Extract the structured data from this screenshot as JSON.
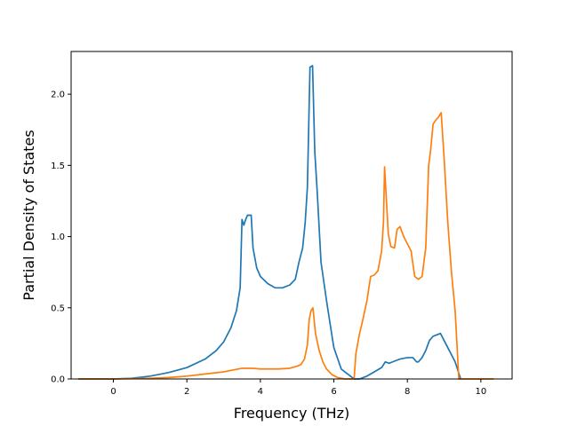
{
  "chart_data": {
    "type": "line",
    "title": "",
    "xlabel": "Frequency (THz)",
    "ylabel": "Partial Density of States",
    "xlim": [
      -1.15,
      10.85
    ],
    "ylim": [
      0.0,
      2.3
    ],
    "xticks": [
      0,
      2,
      4,
      6,
      8,
      10
    ],
    "yticks": [
      0.0,
      0.5,
      1.0,
      1.5,
      2.0
    ],
    "xtick_labels": [
      "0",
      "2",
      "4",
      "6",
      "8",
      "10"
    ],
    "ytick_labels": [
      "0.0",
      "0.5",
      "1.0",
      "1.5",
      "2.0"
    ],
    "grid": false,
    "legend": "none",
    "series": [
      {
        "color": "#1f77b4",
        "x": [
          -0.95,
          0.0,
          0.5,
          1.0,
          1.5,
          2.0,
          2.5,
          2.8,
          3.0,
          3.2,
          3.35,
          3.45,
          3.5,
          3.55,
          3.6,
          3.65,
          3.75,
          3.8,
          3.9,
          4.0,
          4.2,
          4.4,
          4.6,
          4.8,
          4.95,
          5.05,
          5.15,
          5.22,
          5.28,
          5.35,
          5.42,
          5.48,
          5.55,
          5.65,
          5.8,
          5.95,
          6.0,
          6.2,
          6.4,
          6.55,
          6.7,
          6.9,
          7.1,
          7.3,
          7.4,
          7.5,
          7.6,
          7.7,
          7.8,
          8.0,
          8.15,
          8.25,
          8.3,
          8.4,
          8.5,
          8.6,
          8.7,
          8.8,
          8.9,
          9.0,
          9.1,
          9.3,
          9.45
        ],
        "y": [
          0.0,
          0.0,
          0.005,
          0.02,
          0.045,
          0.08,
          0.14,
          0.2,
          0.26,
          0.36,
          0.48,
          0.64,
          1.12,
          1.08,
          1.12,
          1.15,
          1.15,
          0.92,
          0.78,
          0.72,
          0.67,
          0.64,
          0.64,
          0.66,
          0.7,
          0.82,
          0.92,
          1.1,
          1.35,
          2.19,
          2.2,
          1.6,
          1.3,
          0.82,
          0.55,
          0.3,
          0.22,
          0.07,
          0.03,
          0.0,
          0.0,
          0.02,
          0.05,
          0.08,
          0.12,
          0.11,
          0.12,
          0.13,
          0.14,
          0.15,
          0.15,
          0.12,
          0.12,
          0.15,
          0.2,
          0.27,
          0.3,
          0.31,
          0.32,
          0.27,
          0.22,
          0.12,
          0.0
        ]
      },
      {
        "color": "#ff7f0e",
        "x": [
          -0.95,
          0.0,
          0.5,
          1.0,
          1.5,
          2.0,
          2.5,
          3.0,
          3.5,
          3.8,
          4.0,
          4.5,
          4.8,
          5.0,
          5.1,
          5.2,
          5.28,
          5.33,
          5.38,
          5.43,
          5.5,
          5.6,
          5.7,
          5.8,
          5.95,
          6.1,
          6.3,
          6.55,
          6.6,
          6.7,
          6.8,
          6.9,
          7.0,
          7.1,
          7.2,
          7.3,
          7.35,
          7.38,
          7.42,
          7.48,
          7.55,
          7.65,
          7.72,
          7.8,
          7.9,
          8.0,
          8.1,
          8.2,
          8.3,
          8.4,
          8.5,
          8.58,
          8.63,
          8.7,
          8.78,
          8.85,
          8.92,
          9.0,
          9.1,
          9.2,
          9.3,
          9.4,
          9.6,
          10.35
        ],
        "y": [
          0.0,
          0.0,
          0.002,
          0.005,
          0.01,
          0.02,
          0.035,
          0.05,
          0.075,
          0.075,
          0.07,
          0.07,
          0.075,
          0.09,
          0.1,
          0.14,
          0.24,
          0.42,
          0.48,
          0.5,
          0.32,
          0.2,
          0.12,
          0.07,
          0.03,
          0.01,
          0.0,
          0.0,
          0.18,
          0.32,
          0.43,
          0.55,
          0.72,
          0.73,
          0.76,
          0.9,
          1.1,
          1.49,
          1.3,
          1.02,
          0.93,
          0.92,
          1.05,
          1.07,
          1.0,
          0.95,
          0.9,
          0.72,
          0.7,
          0.72,
          0.92,
          1.5,
          1.6,
          1.79,
          1.82,
          1.84,
          1.87,
          1.55,
          1.1,
          0.75,
          0.48,
          0.0,
          0.0,
          0.0
        ]
      }
    ]
  }
}
